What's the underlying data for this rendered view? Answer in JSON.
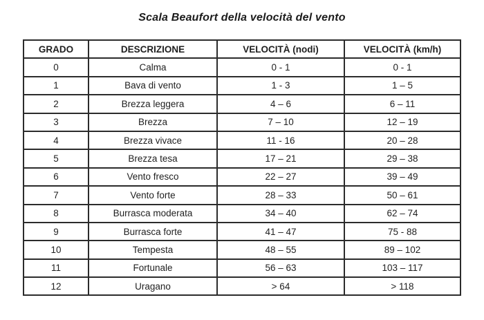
{
  "title": "Scala Beaufort della velocità del vento",
  "table": {
    "headers": [
      "GRADO",
      "DESCRIZIONE",
      "VELOCITÀ (nodi)",
      "VELOCITÀ (km/h)"
    ],
    "rows": [
      [
        "0",
        "Calma",
        "0 - 1",
        "0 - 1"
      ],
      [
        "1",
        "Bava di vento",
        "1 - 3",
        "1 – 5"
      ],
      [
        "2",
        "Brezza leggera",
        "4 – 6",
        "6 – 11"
      ],
      [
        "3",
        "Brezza",
        "7 – 10",
        "12 – 19"
      ],
      [
        "4",
        "Brezza vivace",
        "11 - 16",
        "20 – 28"
      ],
      [
        "5",
        "Brezza tesa",
        "17 – 21",
        "29 – 38"
      ],
      [
        "6",
        "Vento fresco",
        "22 – 27",
        "39 – 49"
      ],
      [
        "7",
        "Vento forte",
        "28 – 33",
        "50 – 61"
      ],
      [
        "8",
        "Burrasca moderata",
        "34 – 40",
        "62 – 74"
      ],
      [
        "9",
        "Burrasca forte",
        "41 – 47",
        "75 - 88"
      ],
      [
        "10",
        "Tempesta",
        "48 – 55",
        "89 – 102"
      ],
      [
        "11",
        "Fortunale",
        "56 – 63",
        "103 – 117"
      ],
      [
        "12",
        "Uragano",
        "> 64",
        "> 118"
      ]
    ]
  },
  "colors": {
    "text": "#1f1f1f",
    "border": "#2b2b2b",
    "background": "#ffffff"
  },
  "chart_data": {
    "type": "table",
    "title": "Scala Beaufort della velocità del vento",
    "columns": [
      "GRADO",
      "DESCRIZIONE",
      "VELOCITÀ (nodi)",
      "VELOCITÀ (km/h)"
    ],
    "rows": [
      [
        "0",
        "Calma",
        "0 - 1",
        "0 - 1"
      ],
      [
        "1",
        "Bava di vento",
        "1 - 3",
        "1 – 5"
      ],
      [
        "2",
        "Brezza leggera",
        "4 – 6",
        "6 – 11"
      ],
      [
        "3",
        "Brezza",
        "7 – 10",
        "12 – 19"
      ],
      [
        "4",
        "Brezza vivace",
        "11 - 16",
        "20 – 28"
      ],
      [
        "5",
        "Brezza tesa",
        "17 – 21",
        "29 – 38"
      ],
      [
        "6",
        "Vento fresco",
        "22 – 27",
        "39 – 49"
      ],
      [
        "7",
        "Vento forte",
        "28 – 33",
        "50 – 61"
      ],
      [
        "8",
        "Burrasca moderata",
        "34 – 40",
        "62 – 74"
      ],
      [
        "9",
        "Burrasca forte",
        "41 – 47",
        "75 - 88"
      ],
      [
        "10",
        "Tempesta",
        "48 – 55",
        "89 – 102"
      ],
      [
        "11",
        "Fortunale",
        "56 – 63",
        "103 – 117"
      ],
      [
        "12",
        "Uragano",
        "> 64",
        "> 118"
      ]
    ]
  }
}
